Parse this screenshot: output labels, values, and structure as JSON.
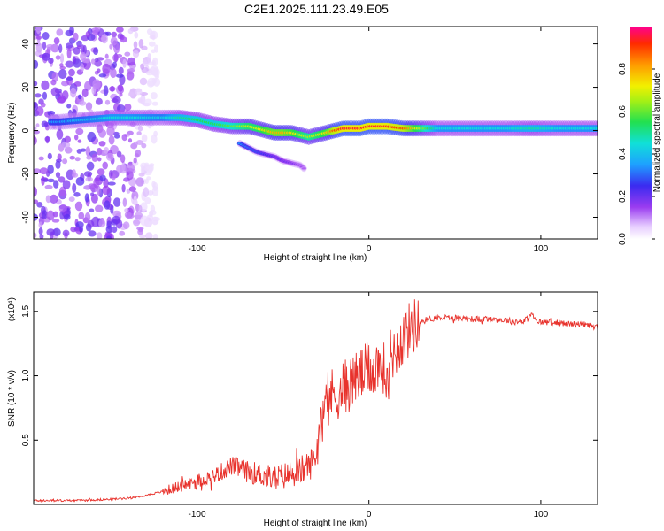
{
  "page": {
    "title": "C2E1.2025.111.23.49.E05"
  },
  "chart_data": [
    {
      "type": "heatmap",
      "xlabel": "Height of straight line (km)",
      "ylabel": "Frequency (Hz)",
      "xlim": [
        -195,
        133
      ],
      "ylim": [
        -50,
        48
      ],
      "x_ticks": [
        -100,
        0,
        100
      ],
      "y_ticks": [
        40,
        20,
        0,
        -20,
        -40
      ],
      "x_tick_labels": [
        "-100",
        "0",
        "100"
      ],
      "y_tick_labels": [
        "40",
        "20",
        "0",
        "-20",
        "-40"
      ],
      "colorbar": {
        "label": "Normalized spectral amplitude",
        "range": [
          0,
          1
        ],
        "ticks": [
          0.0,
          0.2,
          0.4,
          0.6,
          0.8
        ],
        "tick_labels": [
          "0.0",
          "0.2",
          "0.4",
          "0.6",
          "0.8"
        ]
      },
      "noise_region_x": [
        -195,
        -135
      ],
      "ridge": {
        "x": [
          -185,
          -180,
          -150,
          -140,
          -120,
          -110,
          -100,
          -90,
          -80,
          -75,
          -70,
          -65,
          -60,
          -55,
          -50,
          -45,
          -40,
          -35,
          -30,
          -25,
          -20,
          -15,
          -10,
          -5,
          0,
          10,
          20,
          40,
          60,
          80,
          95,
          110,
          133
        ],
        "freq": [
          4,
          4,
          6,
          6,
          6,
          6,
          5,
          3,
          2,
          2,
          2,
          1,
          0,
          -1,
          -1,
          -1,
          -2,
          -3,
          -2,
          -1,
          0,
          1,
          1,
          1,
          2,
          2,
          1,
          1,
          1,
          1,
          1,
          1,
          1
        ],
        "amplitude": [
          0.35,
          0.35,
          0.45,
          0.45,
          0.42,
          0.5,
          0.55,
          0.55,
          0.6,
          0.65,
          0.7,
          0.7,
          0.75,
          0.8,
          0.8,
          0.75,
          0.7,
          0.65,
          0.7,
          0.75,
          0.9,
          0.95,
          0.95,
          0.95,
          0.95,
          0.95,
          0.9,
          0.45,
          0.45,
          0.45,
          0.5,
          0.45,
          0.45
        ]
      },
      "branch": {
        "x": [
          -75,
          -70,
          -65,
          -60,
          -55,
          -50,
          -45,
          -40,
          -37
        ],
        "freq": [
          -6,
          -8,
          -10,
          -11,
          -12,
          -14,
          -15,
          -16,
          -18
        ],
        "amplitude": [
          0.35,
          0.3,
          0.28,
          0.25,
          0.22,
          0.2,
          0.18,
          0.15,
          0.12
        ]
      }
    },
    {
      "type": "line",
      "xlabel": "Height of straight line (km)",
      "ylabel": "SNR (10 * v/v)",
      "y_multiplier": "(x10⁴)",
      "xlim": [
        -195,
        133
      ],
      "ylim": [
        0,
        1.65
      ],
      "x_ticks": [
        -100,
        0,
        100
      ],
      "y_ticks": [
        0.5,
        1.0,
        1.5
      ],
      "x_tick_labels": [
        "-100",
        "0",
        "100"
      ],
      "y_tick_labels": [
        "0.5",
        "1.0",
        "1.5"
      ],
      "series": [
        {
          "color": "#e8322c",
          "x": [
            -195,
            -170,
            -150,
            -140,
            -130,
            -120,
            -110,
            -100,
            -90,
            -85,
            -80,
            -75,
            -70,
            -65,
            -60,
            -55,
            -50,
            -45,
            -40,
            -35,
            -32,
            -30,
            -28,
            -25,
            -22,
            -20,
            -15,
            -10,
            -5,
            0,
            5,
            8,
            10,
            12,
            15,
            18,
            20,
            25,
            30,
            35,
            40,
            50,
            60,
            70,
            80,
            85,
            90,
            93,
            95,
            97,
            100,
            110,
            120,
            133
          ],
          "y": [
            0.03,
            0.03,
            0.04,
            0.05,
            0.07,
            0.1,
            0.14,
            0.18,
            0.22,
            0.26,
            0.3,
            0.28,
            0.25,
            0.24,
            0.22,
            0.2,
            0.22,
            0.24,
            0.26,
            0.3,
            0.35,
            0.45,
            0.7,
            0.8,
            0.85,
            0.85,
            0.9,
            0.95,
            1.0,
            1.05,
            1.08,
            1.1,
            0.95,
            1.15,
            1.2,
            1.25,
            1.3,
            1.38,
            1.42,
            1.44,
            1.45,
            1.45,
            1.44,
            1.44,
            1.43,
            1.42,
            1.42,
            1.45,
            1.48,
            1.42,
            1.42,
            1.41,
            1.4,
            1.38
          ]
        }
      ]
    }
  ]
}
